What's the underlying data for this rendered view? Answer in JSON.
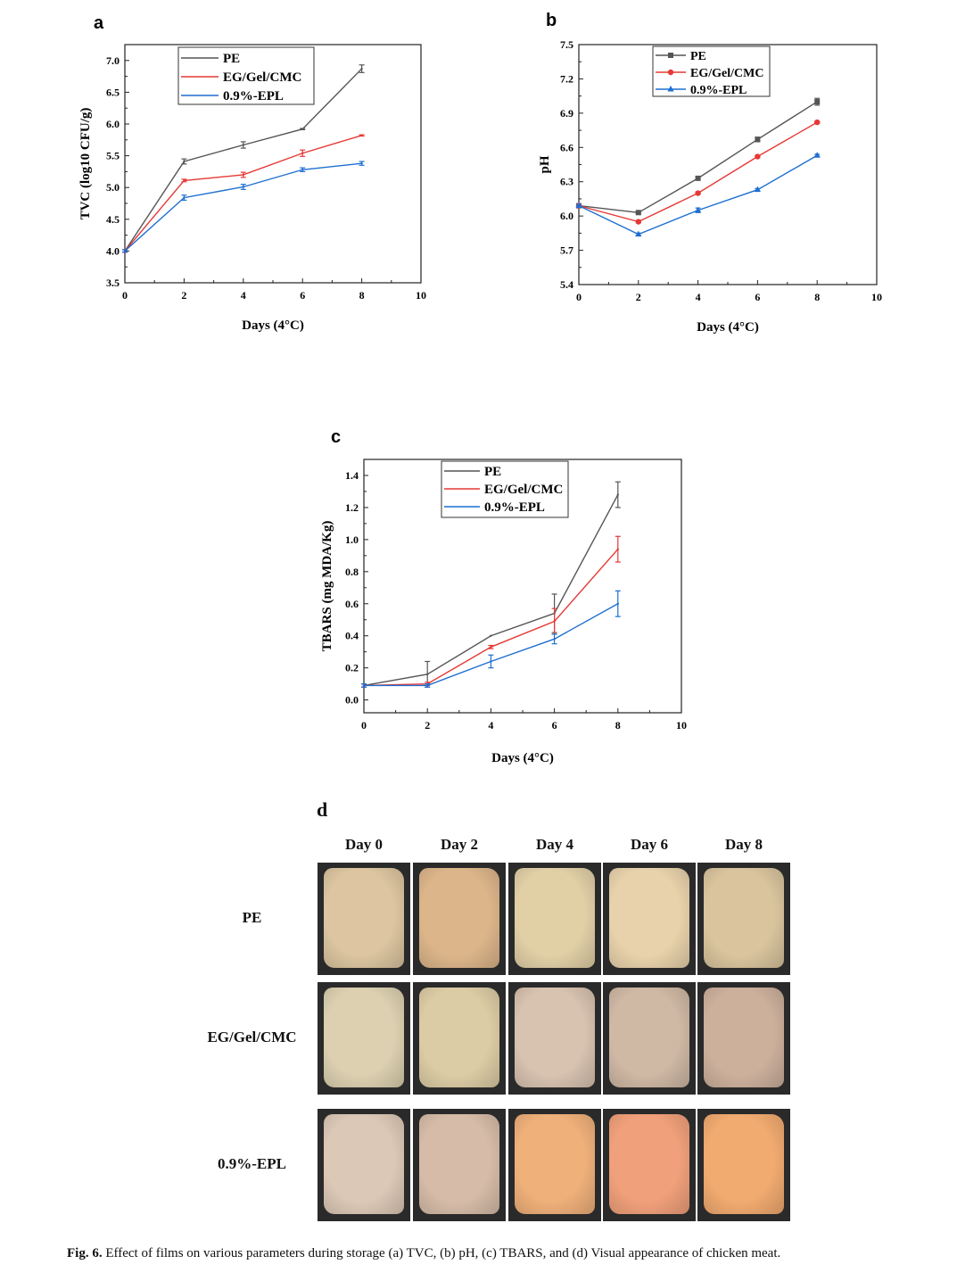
{
  "chart_data": [
    {
      "panel": "a",
      "type": "line",
      "xlabel": "Days (4°C)",
      "ylabel": "TVC (log10 CFU/g)",
      "x": [
        0,
        2,
        4,
        6,
        8
      ],
      "xlim": [
        0,
        10
      ],
      "xticks": [
        "0",
        "2",
        "4",
        "6",
        "8",
        "10"
      ],
      "ylim": [
        3.5,
        7.25
      ],
      "yticks": [
        "3.5",
        "4.0",
        "4.5",
        "5.0",
        "5.5",
        "6.0",
        "6.5",
        "7.0"
      ],
      "legend": "top-center",
      "series": [
        {
          "name": "PE",
          "color": "#555555",
          "marker": "none",
          "values": [
            4.0,
            5.41,
            5.67,
            5.92,
            6.87
          ],
          "err": [
            0.02,
            0.04,
            0.05,
            0.01,
            0.06
          ]
        },
        {
          "name": "EG/Gel/CMC",
          "color": "#e53935",
          "marker": "none",
          "values": [
            4.0,
            5.11,
            5.2,
            5.54,
            5.82
          ],
          "err": [
            0.02,
            0.02,
            0.04,
            0.05,
            0.01
          ]
        },
        {
          "name": "0.9%-EPL",
          "color": "#1e6fd1",
          "marker": "none",
          "values": [
            4.0,
            4.84,
            5.01,
            5.28,
            5.38
          ],
          "err": [
            0.02,
            0.04,
            0.04,
            0.03,
            0.03
          ]
        }
      ]
    },
    {
      "panel": "b",
      "type": "line",
      "xlabel": "Days (4°C)",
      "ylabel": "pH",
      "x": [
        0,
        2,
        4,
        6,
        8
      ],
      "xlim": [
        0,
        10
      ],
      "xticks": [
        "0",
        "2",
        "4",
        "6",
        "8",
        "10"
      ],
      "ylim": [
        5.4,
        7.5
      ],
      "yticks": [
        "5.4",
        "5.7",
        "6.0",
        "6.3",
        "6.6",
        "6.9",
        "7.2",
        "7.5"
      ],
      "legend": "top-center",
      "series": [
        {
          "name": "PE",
          "color": "#555555",
          "marker": "square",
          "values": [
            6.09,
            6.03,
            6.33,
            6.67,
            7.0
          ],
          "err": [
            0.01,
            0.01,
            0.01,
            0.02,
            0.03
          ]
        },
        {
          "name": "EG/Gel/CMC",
          "color": "#e53935",
          "marker": "circle",
          "values": [
            6.09,
            5.95,
            6.2,
            6.52,
            6.82
          ],
          "err": [
            0.01,
            0.01,
            0.01,
            0.01,
            0.01
          ]
        },
        {
          "name": "0.9%-EPL",
          "color": "#1e6fd1",
          "marker": "triangle",
          "values": [
            6.09,
            5.84,
            6.05,
            6.23,
            6.53
          ],
          "err": [
            0.01,
            0.01,
            0.02,
            0.01,
            0.01
          ]
        }
      ]
    },
    {
      "panel": "c",
      "type": "line",
      "xlabel": "Days (4°C)",
      "ylabel": "TBARS (mg MDA/Kg)",
      "x": [
        0,
        2,
        4,
        6,
        8
      ],
      "xlim": [
        0,
        10
      ],
      "xticks": [
        "0",
        "2",
        "4",
        "6",
        "8",
        "10"
      ],
      "ylim": [
        -0.08,
        1.5
      ],
      "yticks": [
        "0.0",
        "0.2",
        "0.4",
        "0.6",
        "0.8",
        "1.0",
        "1.2",
        "1.4"
      ],
      "legend": "top-center",
      "series": [
        {
          "name": "PE",
          "color": "#555555",
          "marker": "none",
          "values": [
            0.09,
            0.16,
            0.4,
            0.54,
            1.28
          ],
          "err": [
            0.01,
            0.08,
            0.0,
            0.12,
            0.08
          ]
        },
        {
          "name": "EG/Gel/CMC",
          "color": "#e53935",
          "marker": "none",
          "values": [
            0.09,
            0.1,
            0.33,
            0.49,
            0.94
          ],
          "err": [
            0.01,
            0.01,
            0.01,
            0.08,
            0.08
          ]
        },
        {
          "name": "0.9%-EPL",
          "color": "#1e6fd1",
          "marker": "none",
          "values": [
            0.09,
            0.09,
            0.24,
            0.38,
            0.6
          ],
          "err": [
            0.01,
            0.01,
            0.04,
            0.03,
            0.08
          ]
        }
      ]
    }
  ],
  "panel_letters": {
    "a": "a",
    "b": "b",
    "c": "c",
    "d": "d"
  },
  "panel_d": {
    "days": [
      "Day 0",
      "Day 2",
      "Day 4",
      "Day 6",
      "Day 8"
    ],
    "rows": [
      {
        "label": "PE",
        "tones": [
          "#dcc5a0",
          "#dcb58a",
          "#e1cfa6",
          "#e8d2ab",
          "#d9c49d"
        ]
      },
      {
        "label": "EG/Gel/CMC",
        "tones": [
          "#dcd0b0",
          "#dccca5",
          "#d8c2b0",
          "#cfb8a4",
          "#ccb09c"
        ]
      },
      {
        "label": "0.9%-EPL",
        "tones": [
          "#dcc8b6",
          "#d6bca8",
          "#efb07a",
          "#f0a07a",
          "#f1aa70"
        ]
      }
    ]
  },
  "caption": {
    "label": "Fig. 6.",
    "text": "Effect of films on various parameters during storage (a) TVC, (b) pH, (c) TBARS, and (d) Visual appearance of chicken meat."
  }
}
